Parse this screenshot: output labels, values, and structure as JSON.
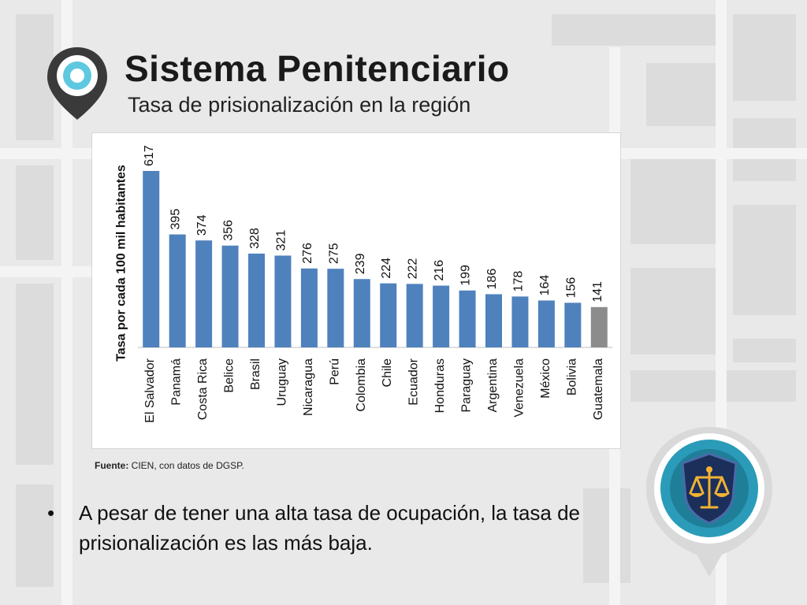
{
  "slide": {
    "title": "Sistema Penitenciario",
    "subtitle": "Tasa de prisionalización en la región",
    "source_bold": "Fuente:",
    "source_rest": " CIEN, con datos de DGSP.",
    "bullet_glyph": "•",
    "bullet_text": "A pesar de tener una alta tasa de ocupación, la tasa de prisionalización es las más baja."
  },
  "icons": {
    "pin": "location-pin-icon",
    "badge": "justice-scales-shield-icon"
  },
  "colors": {
    "bar": "#4f81bd",
    "highlight_bar": "#8c8c8c",
    "teal": "#1d8aa5"
  },
  "chart_data": {
    "type": "bar",
    "title": "",
    "ylabel": "Tasa por cada 100 mil habitantes",
    "xlabel": "",
    "ylim": [
      0,
      617
    ],
    "grid": false,
    "legend": "none",
    "categories": [
      "El Salvador",
      "Panamá",
      "Costa Rica",
      "Belice",
      "Brasil",
      "Uruguay",
      "Nicaragua",
      "Perú",
      "Colombia",
      "Chile",
      "Ecuador",
      "Honduras",
      "Paraguay",
      "Argentina",
      "Venezuela",
      "México",
      "Bolivia",
      "Guatemala"
    ],
    "values": [
      617,
      395,
      374,
      356,
      328,
      321,
      276,
      275,
      239,
      224,
      222,
      216,
      199,
      186,
      178,
      164,
      156,
      141
    ],
    "highlight": "Guatemala"
  }
}
